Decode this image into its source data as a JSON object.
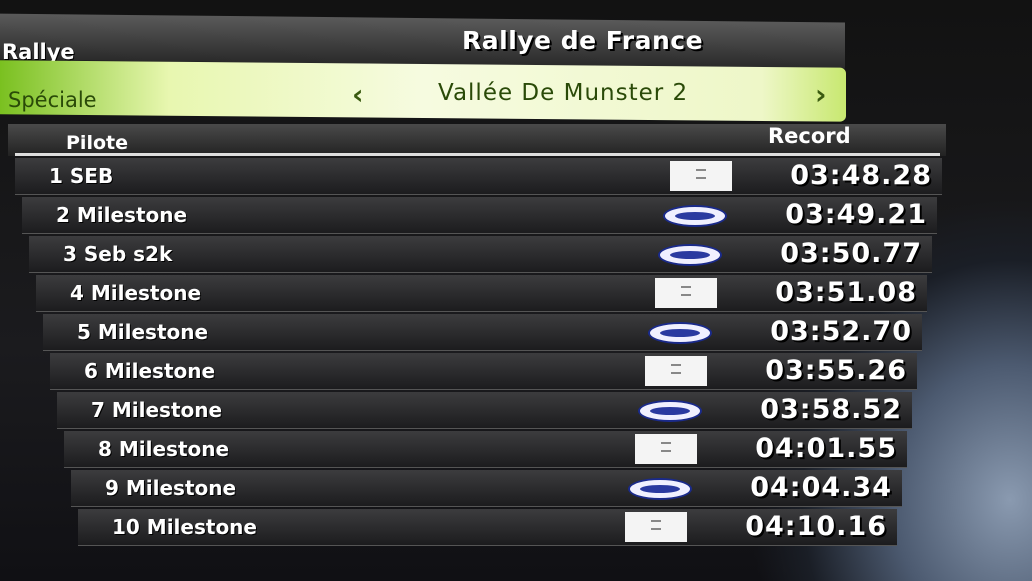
{
  "header": {
    "rallye_label": "Rallye",
    "rallye_name": "Rallye de France"
  },
  "selector": {
    "label": "Spéciale",
    "value": "Vallée De Munster 2",
    "prev_icon": "chevron-left-icon",
    "next_icon": "chevron-right-icon",
    "accent": "#c8e870"
  },
  "table": {
    "columns": {
      "pilote": "Pilote",
      "record": "Record"
    },
    "rows": [
      {
        "name": "1 SEB",
        "logo": "white-badge",
        "time": "03:48.28"
      },
      {
        "name": "2 Milestone",
        "logo": "ford-oval",
        "time": "03:49.21"
      },
      {
        "name": "3 Seb s2k",
        "logo": "ford-oval",
        "time": "03:50.77"
      },
      {
        "name": "4 Milestone",
        "logo": "white-badge",
        "time": "03:51.08"
      },
      {
        "name": "5 Milestone",
        "logo": "ford-oval",
        "time": "03:52.70"
      },
      {
        "name": "6 Milestone",
        "logo": "white-badge",
        "time": "03:55.26"
      },
      {
        "name": "7 Milestone",
        "logo": "ford-oval",
        "time": "03:58.52"
      },
      {
        "name": "8 Milestone",
        "logo": "white-badge",
        "time": "04:01.55"
      },
      {
        "name": "9 Milestone",
        "logo": "ford-oval",
        "time": "04:04.34"
      },
      {
        "name": "10 Milestone",
        "logo": "white-badge",
        "time": "04:10.16"
      }
    ]
  }
}
